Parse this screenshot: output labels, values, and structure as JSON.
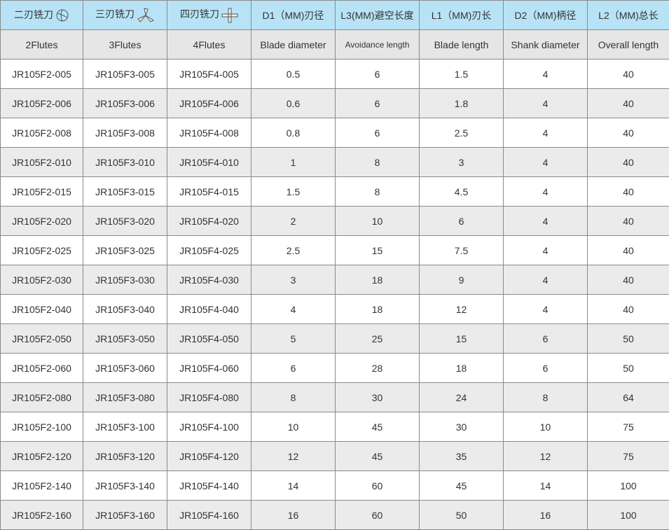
{
  "header": [
    "二刃铣刀",
    "三刃铣刀",
    "四刃铣刀",
    "D1（MM)刃径",
    "L3(MM)避空长度",
    "L1（MM)刃长",
    "D2（MM)柄径",
    "L2（MM)总长"
  ],
  "header_icons": [
    "2-flute-cutter-icon",
    "3-flute-cutter-icon",
    "4-flute-cutter-icon"
  ],
  "subheader": [
    "2Flutes",
    "3Flutes",
    "4Flutes",
    "Blade diameter",
    "Avoidance length",
    "Blade length",
    "Shank diameter",
    "Overall length"
  ],
  "rows": [
    [
      "JR105F2-005",
      "JR105F3-005",
      "JR105F4-005",
      "0.5",
      "6",
      "1.5",
      "4",
      "40"
    ],
    [
      "JR105F2-006",
      "JR105F3-006",
      "JR105F4-006",
      "0.6",
      "6",
      "1.8",
      "4",
      "40"
    ],
    [
      "JR105F2-008",
      "JR105F3-008",
      "JR105F4-008",
      "0.8",
      "6",
      "2.5",
      "4",
      "40"
    ],
    [
      "JR105F2-010",
      "JR105F3-010",
      "JR105F4-010",
      "1",
      "8",
      "3",
      "4",
      "40"
    ],
    [
      "JR105F2-015",
      "JR105F3-015",
      "JR105F4-015",
      "1.5",
      "8",
      "4.5",
      "4",
      "40"
    ],
    [
      "JR105F2-020",
      "JR105F3-020",
      "JR105F4-020",
      "2",
      "10",
      "6",
      "4",
      "40"
    ],
    [
      "JR105F2-025",
      "JR105F3-025",
      "JR105F4-025",
      "2.5",
      "15",
      "7.5",
      "4",
      "40"
    ],
    [
      "JR105F2-030",
      "JR105F3-030",
      "JR105F4-030",
      "3",
      "18",
      "9",
      "4",
      "40"
    ],
    [
      "JR105F2-040",
      "JR105F3-040",
      "JR105F4-040",
      "4",
      "18",
      "12",
      "4",
      "40"
    ],
    [
      "JR105F2-050",
      "JR105F3-050",
      "JR105F4-050",
      "5",
      "25",
      "15",
      "6",
      "50"
    ],
    [
      "JR105F2-060",
      "JR105F3-060",
      "JR105F4-060",
      "6",
      "28",
      "18",
      "6",
      "50"
    ],
    [
      "JR105F2-080",
      "JR105F3-080",
      "JR105F4-080",
      "8",
      "30",
      "24",
      "8",
      "64"
    ],
    [
      "JR105F2-100",
      "JR105F3-100",
      "JR105F4-100",
      "10",
      "45",
      "30",
      "10",
      "75"
    ],
    [
      "JR105F2-120",
      "JR105F3-120",
      "JR105F4-120",
      "12",
      "45",
      "35",
      "12",
      "75"
    ],
    [
      "JR105F2-140",
      "JR105F3-140",
      "JR105F4-140",
      "14",
      "60",
      "45",
      "14",
      "100"
    ],
    [
      "JR105F2-160",
      "JR105F3-160",
      "JR105F4-160",
      "16",
      "60",
      "50",
      "16",
      "100"
    ]
  ]
}
